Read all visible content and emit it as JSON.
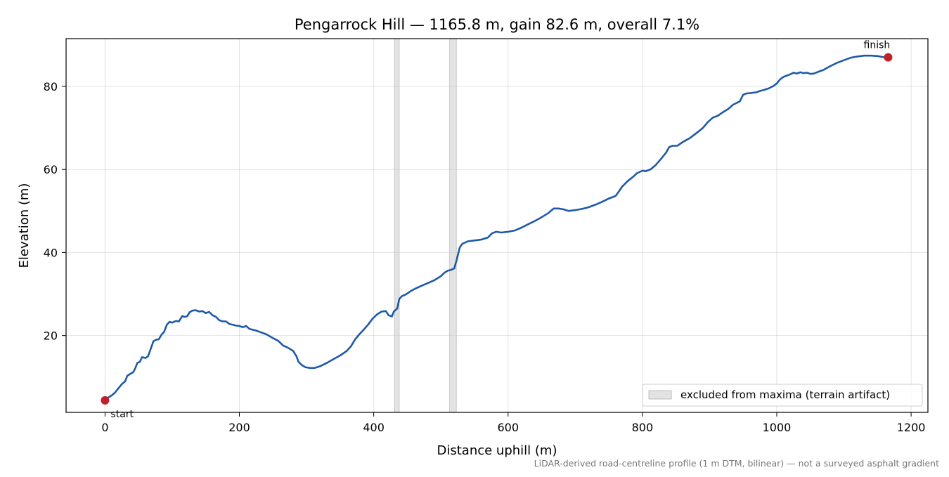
{
  "chart_data": {
    "type": "line",
    "title": "Pengarrock Hill — 1165.8 m, gain 82.6 m, overall 7.1%",
    "xlabel": "Distance uphill (m)",
    "ylabel": "Elevation (m)",
    "xlim": [
      -58,
      1225
    ],
    "ylim": [
      1.5,
      91.5
    ],
    "xticks": [
      0,
      200,
      400,
      600,
      800,
      1000,
      1200
    ],
    "yticks": [
      20,
      40,
      60,
      80
    ],
    "grid": true,
    "line_color": "#1f5aa6",
    "marker_color": "#c0202a",
    "band_color": "#c8c8c8",
    "series": [
      {
        "points": [
          [
            0,
            4.4
          ],
          [
            5,
            5.1
          ],
          [
            10,
            5.6
          ],
          [
            15,
            6.3
          ],
          [
            20,
            7.3
          ],
          [
            25,
            8.3
          ],
          [
            30,
            9.0
          ],
          [
            33,
            10.3
          ],
          [
            38,
            10.8
          ],
          [
            42,
            11.2
          ],
          [
            45,
            12.1
          ],
          [
            48,
            13.4
          ],
          [
            52,
            13.7
          ],
          [
            55,
            14.8
          ],
          [
            60,
            14.6
          ],
          [
            64,
            15.0
          ],
          [
            68,
            16.8
          ],
          [
            72,
            18.6
          ],
          [
            76,
            19.0
          ],
          [
            80,
            19.1
          ],
          [
            84,
            20.2
          ],
          [
            88,
            20.9
          ],
          [
            92,
            22.6
          ],
          [
            96,
            23.3
          ],
          [
            100,
            23.1
          ],
          [
            105,
            23.5
          ],
          [
            110,
            23.4
          ],
          [
            115,
            24.7
          ],
          [
            118,
            24.5
          ],
          [
            122,
            24.6
          ],
          [
            126,
            25.6
          ],
          [
            130,
            26.0
          ],
          [
            135,
            26.1
          ],
          [
            140,
            25.8
          ],
          [
            145,
            25.9
          ],
          [
            150,
            25.4
          ],
          [
            155,
            25.7
          ],
          [
            160,
            24.9
          ],
          [
            165,
            24.5
          ],
          [
            170,
            23.7
          ],
          [
            175,
            23.4
          ],
          [
            180,
            23.4
          ],
          [
            185,
            22.8
          ],
          [
            190,
            22.6
          ],
          [
            195,
            22.4
          ],
          [
            200,
            22.3
          ],
          [
            205,
            22.0
          ],
          [
            210,
            22.3
          ],
          [
            215,
            21.6
          ],
          [
            220,
            21.4
          ],
          [
            225,
            21.2
          ],
          [
            230,
            20.9
          ],
          [
            240,
            20.3
          ],
          [
            250,
            19.4
          ],
          [
            258,
            18.7
          ],
          [
            265,
            17.6
          ],
          [
            272,
            17.1
          ],
          [
            280,
            16.3
          ],
          [
            285,
            15.0
          ],
          [
            288,
            13.7
          ],
          [
            292,
            13.0
          ],
          [
            298,
            12.4
          ],
          [
            305,
            12.2
          ],
          [
            312,
            12.2
          ],
          [
            320,
            12.6
          ],
          [
            330,
            13.4
          ],
          [
            340,
            14.3
          ],
          [
            350,
            15.2
          ],
          [
            360,
            16.3
          ],
          [
            366,
            17.4
          ],
          [
            372,
            19.0
          ],
          [
            378,
            20.2
          ],
          [
            385,
            21.4
          ],
          [
            392,
            22.7
          ],
          [
            398,
            24.0
          ],
          [
            405,
            25.1
          ],
          [
            412,
            25.8
          ],
          [
            418,
            25.9
          ],
          [
            422,
            24.9
          ],
          [
            427,
            24.6
          ],
          [
            430,
            25.8
          ],
          [
            435,
            26.5
          ],
          [
            438,
            28.8
          ],
          [
            442,
            29.5
          ],
          [
            448,
            29.9
          ],
          [
            455,
            30.7
          ],
          [
            462,
            31.3
          ],
          [
            470,
            31.9
          ],
          [
            480,
            32.6
          ],
          [
            490,
            33.3
          ],
          [
            500,
            34.3
          ],
          [
            505,
            35.1
          ],
          [
            510,
            35.6
          ],
          [
            515,
            35.8
          ],
          [
            520,
            36.2
          ],
          [
            524,
            38.5
          ],
          [
            528,
            41.2
          ],
          [
            532,
            42.1
          ],
          [
            540,
            42.7
          ],
          [
            550,
            42.9
          ],
          [
            560,
            43.1
          ],
          [
            570,
            43.6
          ],
          [
            576,
            44.6
          ],
          [
            582,
            45.0
          ],
          [
            590,
            44.8
          ],
          [
            600,
            45.0
          ],
          [
            610,
            45.3
          ],
          [
            620,
            46.0
          ],
          [
            630,
            46.8
          ],
          [
            640,
            47.6
          ],
          [
            650,
            48.5
          ],
          [
            660,
            49.5
          ],
          [
            668,
            50.6
          ],
          [
            675,
            50.6
          ],
          [
            682,
            50.4
          ],
          [
            690,
            50.0
          ],
          [
            700,
            50.2
          ],
          [
            710,
            50.5
          ],
          [
            720,
            50.9
          ],
          [
            730,
            51.5
          ],
          [
            740,
            52.2
          ],
          [
            750,
            53.0
          ],
          [
            760,
            53.6
          ],
          [
            765,
            54.7
          ],
          [
            770,
            55.9
          ],
          [
            778,
            57.2
          ],
          [
            786,
            58.2
          ],
          [
            792,
            59.1
          ],
          [
            800,
            59.7
          ],
          [
            805,
            59.6
          ],
          [
            812,
            60.0
          ],
          [
            820,
            61.1
          ],
          [
            828,
            62.6
          ],
          [
            835,
            64.0
          ],
          [
            840,
            65.4
          ],
          [
            845,
            65.7
          ],
          [
            852,
            65.7
          ],
          [
            860,
            66.6
          ],
          [
            870,
            67.5
          ],
          [
            880,
            68.7
          ],
          [
            890,
            70.0
          ],
          [
            898,
            71.5
          ],
          [
            905,
            72.5
          ],
          [
            912,
            72.9
          ],
          [
            920,
            73.8
          ],
          [
            928,
            74.6
          ],
          [
            935,
            75.6
          ],
          [
            945,
            76.4
          ],
          [
            950,
            78.0
          ],
          [
            955,
            78.3
          ],
          [
            962,
            78.4
          ],
          [
            970,
            78.6
          ],
          [
            975,
            78.9
          ],
          [
            980,
            79.1
          ],
          [
            988,
            79.5
          ],
          [
            995,
            80.1
          ],
          [
            1000,
            80.7
          ],
          [
            1005,
            81.7
          ],
          [
            1010,
            82.3
          ],
          [
            1015,
            82.6
          ],
          [
            1020,
            82.9
          ],
          [
            1025,
            83.3
          ],
          [
            1030,
            83.1
          ],
          [
            1035,
            83.4
          ],
          [
            1040,
            83.2
          ],
          [
            1045,
            83.3
          ],
          [
            1050,
            83.0
          ],
          [
            1055,
            83.1
          ],
          [
            1060,
            83.4
          ],
          [
            1070,
            84.0
          ],
          [
            1080,
            84.9
          ],
          [
            1090,
            85.7
          ],
          [
            1100,
            86.3
          ],
          [
            1110,
            86.9
          ],
          [
            1120,
            87.2
          ],
          [
            1130,
            87.4
          ],
          [
            1140,
            87.4
          ],
          [
            1150,
            87.3
          ],
          [
            1160,
            87.0
          ],
          [
            1165.8,
            87.0
          ]
        ]
      }
    ],
    "markers": [
      {
        "label": "start",
        "x": 0,
        "y": 4.4
      },
      {
        "label": "finish",
        "x": 1165.8,
        "y": 87.0
      }
    ],
    "excluded_ranges": [
      [
        431,
        438
      ],
      [
        513,
        523
      ]
    ],
    "legend": {
      "label": "excluded from maxima (terrain artifact)",
      "placement": "lower-right"
    },
    "footnote": "LiDAR-derived road-centreline profile (1 m DTM, bilinear) — not a surveyed asphalt gradient"
  }
}
